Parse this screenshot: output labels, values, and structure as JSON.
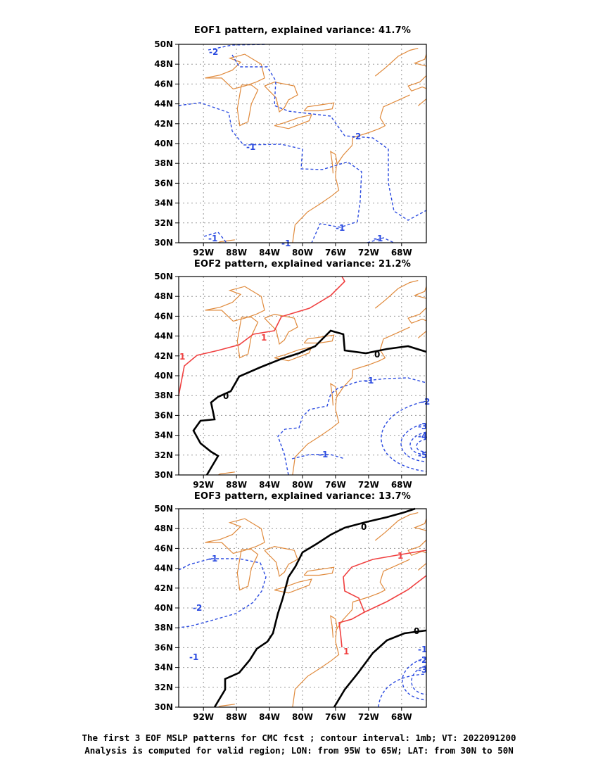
{
  "panels": [
    {
      "title": "EOF1 pattern, explained variance: 41.7%"
    },
    {
      "title": "EOF2 pattern, explained variance: 21.2%"
    },
    {
      "title": "EOF3 pattern, explained variance: 13.7%"
    }
  ],
  "map": {
    "lon_range": [
      -95,
      -65
    ],
    "lat_range": [
      30,
      50
    ],
    "lat_ticks": [
      "50N",
      "48N",
      "46N",
      "44N",
      "42N",
      "40N",
      "38N",
      "36N",
      "34N",
      "32N",
      "30N"
    ],
    "lon_ticks": [
      "92W",
      "88W",
      "84W",
      "80W",
      "76W",
      "72W",
      "68W"
    ],
    "colors": {
      "coast": "#e08a3c",
      "negative": "#2b4be0",
      "positive": "#f04040",
      "zero": "#000000",
      "grid": "#9a9a9a"
    }
  },
  "contour_labels": {
    "p1": [
      "-2",
      "-1",
      "-2",
      "-1",
      "-1",
      "-1",
      "-1"
    ],
    "p2": [
      "1",
      "1",
      "0",
      "0",
      "-1",
      "-1",
      "-2",
      "-3",
      "-4",
      "-5"
    ],
    "p3": [
      "0",
      "-1",
      "1",
      "-2",
      "-1",
      "1",
      "0",
      "-1",
      "-2",
      "-3"
    ]
  },
  "caption": {
    "line1": "The first 3 EOF MSLP patterns for CMC fcst ; contour interval: 1mb; VT: 2022091200",
    "line2": "Analysis is computed for valid region; LON: from 95W to 65W; LAT: from 30N to 50N"
  }
}
